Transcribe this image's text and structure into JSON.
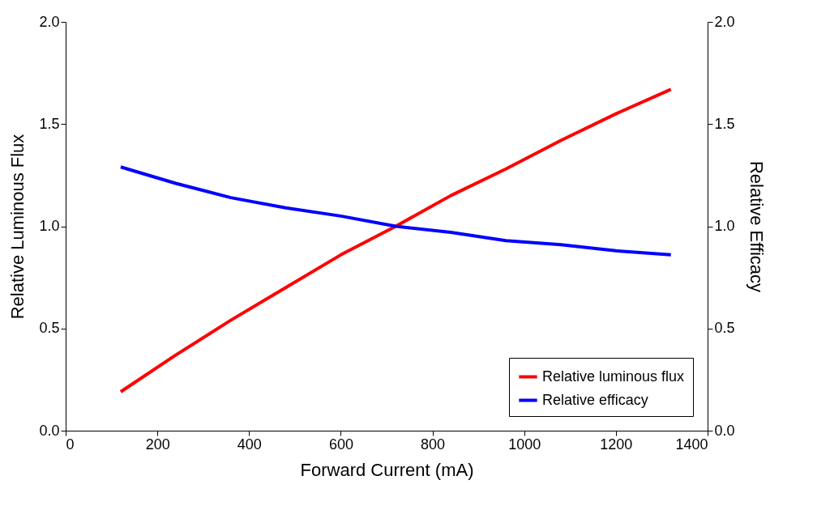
{
  "chart_data": {
    "type": "line",
    "xlabel": "Forward Current  (mA)",
    "ylabel": "Relative Luminous Flux",
    "y2label": "Relative Efficacy",
    "x": [
      120,
      240,
      360,
      480,
      600,
      720,
      840,
      960,
      1080,
      1200,
      1320
    ],
    "series": [
      {
        "name": "Relative luminous flux",
        "color": "#ff0000",
        "values": [
          0.19,
          0.37,
          0.54,
          0.7,
          0.86,
          1.0,
          1.15,
          1.28,
          1.42,
          1.55,
          1.67
        ]
      },
      {
        "name": "Relative efficacy",
        "color": "#0000ff",
        "axis": "y2",
        "values": [
          1.29,
          1.21,
          1.14,
          1.09,
          1.05,
          1.0,
          0.97,
          0.93,
          0.91,
          0.88,
          0.86
        ]
      }
    ],
    "xlim": [
      0,
      1400
    ],
    "xticks": [
      0,
      200,
      400,
      600,
      800,
      1000,
      1200,
      1400
    ],
    "ylim": [
      0,
      2
    ],
    "yticks": [
      {
        "value": 0,
        "label": "0.0"
      },
      {
        "value": 0.5,
        "label": "0.5"
      },
      {
        "value": 1,
        "label": "1.0"
      },
      {
        "value": 1.5,
        "label": "1.5"
      },
      {
        "value": 2,
        "label": "2.0"
      }
    ],
    "y2lim": [
      0,
      2
    ],
    "y2ticks": [
      {
        "value": 0,
        "label": "0.0"
      },
      {
        "value": 0.5,
        "label": "0.5"
      },
      {
        "value": 1,
        "label": "1.0"
      },
      {
        "value": 1.5,
        "label": "1.5"
      },
      {
        "value": 2,
        "label": "2.0"
      }
    ],
    "legend": "bottom right",
    "grid": false,
    "marker": "none",
    "line_style": "solid"
  }
}
